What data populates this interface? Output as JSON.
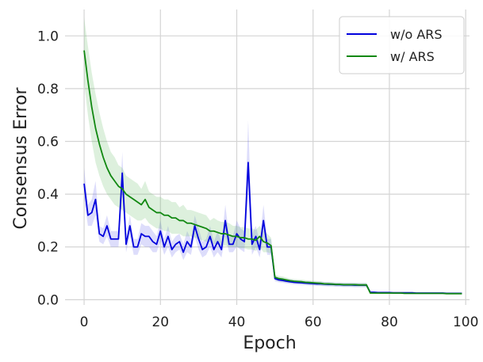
{
  "chart_data": {
    "type": "line",
    "xlabel": "Epoch",
    "ylabel": "Consensus Error",
    "xlim": [
      -5,
      101
    ],
    "ylim": [
      -0.02,
      1.1
    ],
    "xticks": [
      0,
      20,
      40,
      60,
      80,
      100
    ],
    "yticks": [
      0.0,
      0.2,
      0.4,
      0.6,
      0.8,
      1.0
    ],
    "xtick_labels": [
      "0",
      "20",
      "40",
      "60",
      "80",
      "100"
    ],
    "ytick_labels": [
      "0.0",
      "0.2",
      "0.4",
      "0.6",
      "0.8",
      "1.0"
    ],
    "grid": true,
    "legend_position": "top-right",
    "series": [
      {
        "name": "w/o ARS",
        "color": "#0000dd",
        "band_color": "#6666ee",
        "x": [
          0,
          1,
          2,
          3,
          4,
          5,
          6,
          7,
          8,
          9,
          10,
          11,
          12,
          13,
          14,
          15,
          16,
          17,
          18,
          19,
          20,
          21,
          22,
          23,
          24,
          25,
          26,
          27,
          28,
          29,
          30,
          31,
          32,
          33,
          34,
          35,
          36,
          37,
          38,
          39,
          40,
          41,
          42,
          43,
          44,
          45,
          46,
          47,
          48,
          49,
          50,
          51,
          52,
          53,
          54,
          55,
          56,
          57,
          58,
          59,
          60,
          61,
          62,
          63,
          64,
          65,
          66,
          67,
          68,
          69,
          70,
          71,
          72,
          73,
          74,
          75,
          76,
          77,
          78,
          79,
          80,
          81,
          82,
          83,
          84,
          85,
          86,
          87,
          88,
          89,
          90,
          91,
          92,
          93,
          94,
          95,
          96,
          97,
          98,
          99
        ],
        "values": [
          0.44,
          0.32,
          0.33,
          0.38,
          0.25,
          0.24,
          0.28,
          0.23,
          0.23,
          0.23,
          0.48,
          0.21,
          0.28,
          0.2,
          0.2,
          0.25,
          0.24,
          0.24,
          0.22,
          0.21,
          0.26,
          0.2,
          0.24,
          0.19,
          0.21,
          0.22,
          0.18,
          0.22,
          0.2,
          0.28,
          0.23,
          0.19,
          0.2,
          0.24,
          0.19,
          0.22,
          0.19,
          0.3,
          0.21,
          0.21,
          0.25,
          0.23,
          0.22,
          0.52,
          0.21,
          0.24,
          0.19,
          0.3,
          0.2,
          0.2,
          0.08,
          0.075,
          0.073,
          0.07,
          0.068,
          0.066,
          0.065,
          0.064,
          0.063,
          0.062,
          0.061,
          0.06,
          0.06,
          0.059,
          0.058,
          0.058,
          0.057,
          0.057,
          0.056,
          0.056,
          0.056,
          0.055,
          0.055,
          0.055,
          0.055,
          0.028,
          0.028,
          0.027,
          0.027,
          0.027,
          0.027,
          0.026,
          0.026,
          0.026,
          0.026,
          0.026,
          0.026,
          0.025,
          0.025,
          0.025,
          0.025,
          0.025,
          0.025,
          0.025,
          0.025,
          0.024,
          0.024,
          0.024,
          0.024,
          0.024
        ],
        "lower": [
          0.38,
          0.28,
          0.28,
          0.32,
          0.22,
          0.21,
          0.24,
          0.2,
          0.2,
          0.2,
          0.4,
          0.18,
          0.24,
          0.17,
          0.17,
          0.21,
          0.2,
          0.2,
          0.18,
          0.18,
          0.22,
          0.17,
          0.2,
          0.16,
          0.18,
          0.19,
          0.15,
          0.18,
          0.17,
          0.24,
          0.19,
          0.16,
          0.17,
          0.2,
          0.16,
          0.18,
          0.16,
          0.24,
          0.18,
          0.18,
          0.2,
          0.19,
          0.18,
          0.4,
          0.17,
          0.2,
          0.16,
          0.24,
          0.17,
          0.17,
          0.07,
          0.066,
          0.064,
          0.062,
          0.06,
          0.058,
          0.057,
          0.056,
          0.055,
          0.054,
          0.053,
          0.052,
          0.052,
          0.051,
          0.05,
          0.05,
          0.049,
          0.049,
          0.048,
          0.048,
          0.048,
          0.047,
          0.047,
          0.047,
          0.047,
          0.024,
          0.024,
          0.023,
          0.023,
          0.023,
          0.023,
          0.022,
          0.022,
          0.022,
          0.022,
          0.022,
          0.022,
          0.021,
          0.021,
          0.021,
          0.021,
          0.021,
          0.021,
          0.021,
          0.021,
          0.02,
          0.02,
          0.02,
          0.02,
          0.02
        ],
        "upper": [
          0.5,
          0.36,
          0.38,
          0.45,
          0.28,
          0.27,
          0.32,
          0.26,
          0.26,
          0.26,
          0.56,
          0.24,
          0.32,
          0.23,
          0.23,
          0.29,
          0.28,
          0.28,
          0.26,
          0.24,
          0.3,
          0.23,
          0.28,
          0.22,
          0.24,
          0.25,
          0.21,
          0.26,
          0.23,
          0.32,
          0.27,
          0.22,
          0.23,
          0.28,
          0.22,
          0.26,
          0.22,
          0.36,
          0.24,
          0.24,
          0.3,
          0.27,
          0.26,
          0.68,
          0.25,
          0.28,
          0.22,
          0.36,
          0.23,
          0.23,
          0.09,
          0.084,
          0.082,
          0.078,
          0.076,
          0.074,
          0.073,
          0.072,
          0.071,
          0.07,
          0.069,
          0.068,
          0.068,
          0.067,
          0.066,
          0.066,
          0.065,
          0.065,
          0.064,
          0.064,
          0.064,
          0.063,
          0.063,
          0.063,
          0.063,
          0.032,
          0.032,
          0.031,
          0.031,
          0.031,
          0.031,
          0.03,
          0.03,
          0.03,
          0.03,
          0.03,
          0.03,
          0.029,
          0.029,
          0.029,
          0.029,
          0.029,
          0.029,
          0.029,
          0.029,
          0.028,
          0.028,
          0.028,
          0.028,
          0.028
        ]
      },
      {
        "name": "w/ ARS",
        "color": "#118811",
        "band_color": "#66bb66",
        "x": [
          0,
          1,
          2,
          3,
          4,
          5,
          6,
          7,
          8,
          9,
          10,
          11,
          12,
          13,
          14,
          15,
          16,
          17,
          18,
          19,
          20,
          21,
          22,
          23,
          24,
          25,
          26,
          27,
          28,
          29,
          30,
          31,
          32,
          33,
          34,
          35,
          36,
          37,
          38,
          39,
          40,
          41,
          42,
          43,
          44,
          45,
          46,
          47,
          48,
          49,
          50,
          51,
          52,
          53,
          54,
          55,
          56,
          57,
          58,
          59,
          60,
          61,
          62,
          63,
          64,
          65,
          66,
          67,
          68,
          69,
          70,
          71,
          72,
          73,
          74,
          75,
          76,
          77,
          78,
          79,
          80,
          81,
          82,
          83,
          84,
          85,
          86,
          87,
          88,
          89,
          90,
          91,
          92,
          93,
          94,
          95,
          96,
          97,
          98,
          99
        ],
        "values": [
          0.945,
          0.83,
          0.73,
          0.65,
          0.59,
          0.54,
          0.5,
          0.47,
          0.45,
          0.43,
          0.42,
          0.4,
          0.39,
          0.38,
          0.37,
          0.36,
          0.38,
          0.35,
          0.34,
          0.33,
          0.33,
          0.32,
          0.32,
          0.31,
          0.31,
          0.3,
          0.3,
          0.29,
          0.29,
          0.285,
          0.28,
          0.275,
          0.27,
          0.26,
          0.26,
          0.255,
          0.25,
          0.25,
          0.245,
          0.24,
          0.24,
          0.235,
          0.235,
          0.23,
          0.23,
          0.225,
          0.24,
          0.22,
          0.215,
          0.205,
          0.085,
          0.08,
          0.078,
          0.075,
          0.072,
          0.07,
          0.069,
          0.068,
          0.066,
          0.065,
          0.064,
          0.063,
          0.062,
          0.06,
          0.06,
          0.059,
          0.058,
          0.058,
          0.057,
          0.057,
          0.057,
          0.057,
          0.056,
          0.056,
          0.056,
          0.025,
          0.025,
          0.025,
          0.025,
          0.025,
          0.025,
          0.025,
          0.025,
          0.025,
          0.024,
          0.024,
          0.024,
          0.024,
          0.024,
          0.024,
          0.024,
          0.024,
          0.024,
          0.024,
          0.024,
          0.023,
          0.023,
          0.023,
          0.023,
          0.023
        ],
        "lower": [
          0.82,
          0.7,
          0.6,
          0.52,
          0.47,
          0.43,
          0.4,
          0.38,
          0.36,
          0.35,
          0.34,
          0.33,
          0.32,
          0.31,
          0.3,
          0.3,
          0.31,
          0.29,
          0.28,
          0.27,
          0.27,
          0.26,
          0.26,
          0.25,
          0.25,
          0.25,
          0.24,
          0.24,
          0.24,
          0.235,
          0.23,
          0.225,
          0.22,
          0.22,
          0.21,
          0.21,
          0.205,
          0.205,
          0.2,
          0.2,
          0.2,
          0.195,
          0.195,
          0.19,
          0.19,
          0.185,
          0.2,
          0.18,
          0.18,
          0.175,
          0.075,
          0.07,
          0.068,
          0.066,
          0.064,
          0.062,
          0.061,
          0.06,
          0.058,
          0.057,
          0.056,
          0.055,
          0.054,
          0.053,
          0.053,
          0.052,
          0.051,
          0.051,
          0.05,
          0.05,
          0.05,
          0.05,
          0.049,
          0.049,
          0.049,
          0.022,
          0.022,
          0.022,
          0.022,
          0.022,
          0.022,
          0.022,
          0.022,
          0.022,
          0.021,
          0.021,
          0.021,
          0.021,
          0.021,
          0.021,
          0.021,
          0.021,
          0.021,
          0.021,
          0.021,
          0.02,
          0.02,
          0.02,
          0.02,
          0.02
        ],
        "upper": [
          1.07,
          0.96,
          0.86,
          0.78,
          0.71,
          0.65,
          0.6,
          0.56,
          0.54,
          0.51,
          0.5,
          0.47,
          0.46,
          0.45,
          0.44,
          0.42,
          0.45,
          0.41,
          0.4,
          0.39,
          0.39,
          0.38,
          0.38,
          0.37,
          0.37,
          0.35,
          0.36,
          0.34,
          0.34,
          0.335,
          0.33,
          0.325,
          0.32,
          0.3,
          0.31,
          0.3,
          0.295,
          0.295,
          0.29,
          0.28,
          0.28,
          0.275,
          0.275,
          0.27,
          0.27,
          0.265,
          0.28,
          0.26,
          0.25,
          0.235,
          0.095,
          0.09,
          0.088,
          0.084,
          0.08,
          0.078,
          0.077,
          0.076,
          0.074,
          0.073,
          0.072,
          0.071,
          0.07,
          0.067,
          0.067,
          0.066,
          0.065,
          0.065,
          0.064,
          0.064,
          0.064,
          0.064,
          0.063,
          0.063,
          0.063,
          0.028,
          0.028,
          0.028,
          0.028,
          0.028,
          0.028,
          0.028,
          0.028,
          0.028,
          0.027,
          0.027,
          0.027,
          0.027,
          0.027,
          0.027,
          0.027,
          0.027,
          0.027,
          0.027,
          0.027,
          0.026,
          0.026,
          0.026,
          0.026,
          0.026
        ]
      }
    ]
  }
}
